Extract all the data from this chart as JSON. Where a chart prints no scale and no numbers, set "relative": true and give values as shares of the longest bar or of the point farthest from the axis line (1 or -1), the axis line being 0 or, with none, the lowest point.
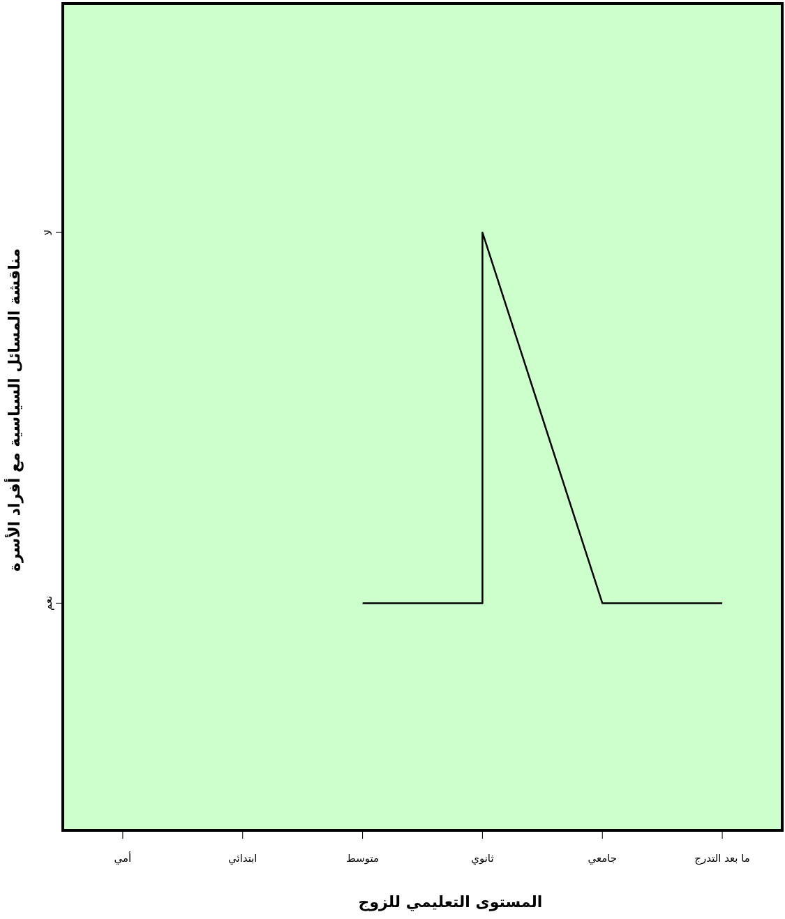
{
  "chart_data": {
    "type": "line",
    "relative": true,
    "xlabel": "المستوى التعليمي للزوج",
    "ylabel": "مناقشة المسائل السياسية مع أفراد الأسرة",
    "categories": [
      "أمي",
      "ابتدائي",
      "متوسط",
      "ثانوي",
      "جامعي",
      "ما بعد التدرج"
    ],
    "series": [
      {
        "color": "#000000",
        "x": [
          "متوسط",
          "ثانوي",
          "ثانوي",
          "جامعي",
          "ما بعد التدرج"
        ],
        "values": [
          0.38,
          0.38,
          1,
          0.38,
          0.38
        ]
      }
    ],
    "annotations": [
      "لا",
      "نعم"
    ]
  }
}
